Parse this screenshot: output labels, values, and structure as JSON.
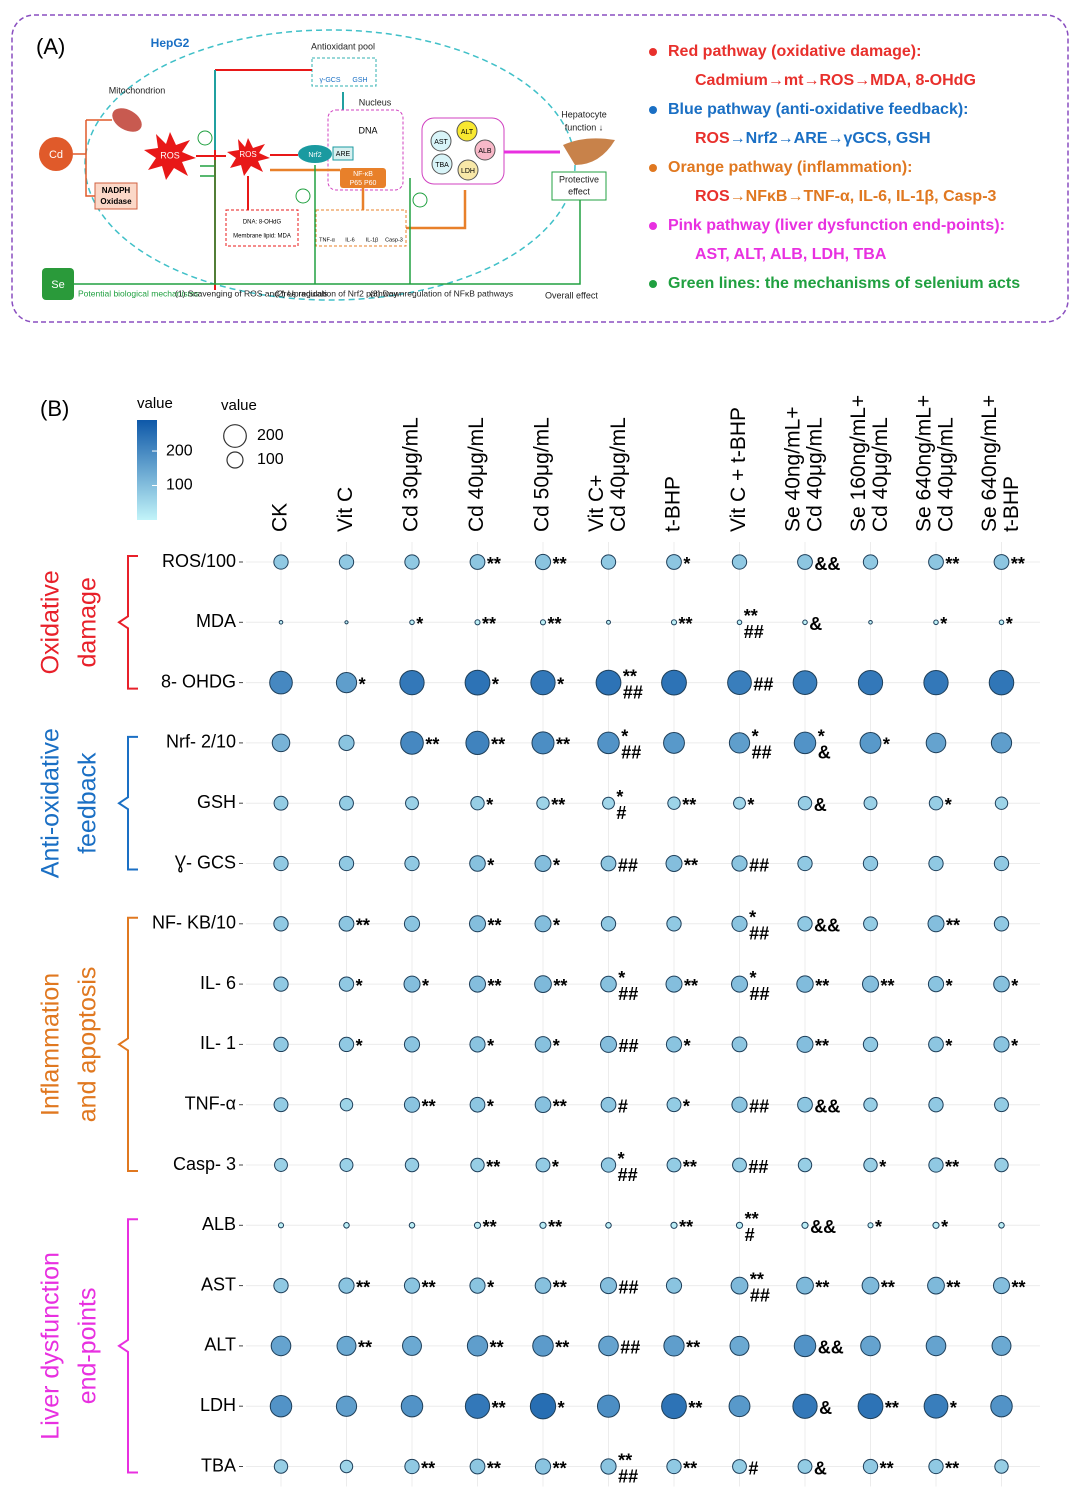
{
  "panel_a": {
    "label": "(A)",
    "cell": "HepG2",
    "antioxidant_pool": "Antioxidant pool",
    "pool_items": [
      "γ-GCS",
      "GSH"
    ],
    "mitochondrion": "Mitochondrion",
    "nucleus": "Nucleus",
    "dna": "DNA",
    "cd": "Cd",
    "nadph": [
      "NADPH",
      "Oxidase"
    ],
    "ros": "ROS",
    "nrf2": "Nrf2",
    "are": "ARE",
    "nfkb": [
      "NF-κB",
      "P65 P60"
    ],
    "enzymes": [
      "AST",
      "ALT",
      "ALB",
      "TBA",
      "LDH"
    ],
    "hepatocyte": [
      "Hepatocyte",
      "function ↓"
    ],
    "protective": [
      "Protective",
      "effect"
    ],
    "damage_targets": [
      "DNA: 8-OHdG",
      "Membrane lipid: MDA"
    ],
    "cytokines": [
      "TNF-α",
      "IL-6",
      "IL-1β",
      "Casp-3"
    ],
    "se": "Se",
    "mechanisms": [
      "Potential biological mechanisms:",
      "(1) Scavenging of ROS and free radicals",
      "(2) Upregulation of Nrf2 pathway",
      "(3) Downregulation of NFκB pathways",
      "Overall effect"
    ],
    "legend": [
      {
        "color": "#e8302c",
        "title": "Red pathway (oxidative damage):",
        "detail": [
          {
            "text": "Cadmium→mt→ROS→MDA, 8-OHdG",
            "color": "#e8302c"
          }
        ]
      },
      {
        "color": "#1a6fc4",
        "title": "Blue pathway (anti-oxidative feedback):",
        "detail": [
          {
            "text": "ROS",
            "color": "#e8302c"
          },
          {
            "text": "→Nrf2→ARE→γGCS, GSH",
            "color": "#1a6fc4"
          }
        ]
      },
      {
        "color": "#e07820",
        "title": "Orange pathway (inflammation):",
        "detail": [
          {
            "text": "ROS",
            "color": "#e8302c"
          },
          {
            "text": "→NFκB→TNF-α, IL-6, IL-1β, Casp-3",
            "color": "#e07820"
          }
        ]
      },
      {
        "color": "#e830e0",
        "title": "Pink pathway (liver dysfunction end-points):",
        "detail": [
          {
            "text": "AST, ALT, ALB, LDH, TBA",
            "color": "#e830e0"
          }
        ]
      },
      {
        "color": "#20a040",
        "title": "Green lines: the mechanisms of selenium acts"
      }
    ]
  },
  "chart_data": {
    "type": "bubble",
    "label": "(B)",
    "color_legend_label": "value",
    "size_legend_label": "value",
    "color_lim": [
      0,
      290
    ],
    "color_ticks": [
      200,
      100
    ],
    "colors": [
      "#c2f4f9",
      "#0e58a8"
    ],
    "size_ticks": [
      200,
      100
    ],
    "categories": [
      [
        "CK"
      ],
      [
        "Vit C"
      ],
      [
        "Cd 30μg/mL"
      ],
      [
        "Cd 40μg/mL"
      ],
      [
        "Cd 50μg/mL"
      ],
      [
        "Vit C+",
        "Cd 40μg/mL"
      ],
      [
        "t-BHP"
      ],
      [
        "Vit C + t-BHP"
      ],
      [
        "Se 40ng/mL+",
        "Cd 40μg/mL"
      ],
      [
        "Se 160ng/mL+",
        "Cd 40μg/mL"
      ],
      [
        "Se 640ng/mL+",
        "Cd 40μg/mL"
      ],
      [
        "Se 640ng/mL+",
        "t-BHP"
      ]
    ],
    "groups": [
      {
        "label": [
          "Oxidative",
          "damage"
        ],
        "color": "#e8202a",
        "rows": [
          {
            "label": "ROS/100",
            "values": [
              80,
              80,
              80,
              85,
              90,
              80,
              85,
              80,
              85,
              80,
              85,
              85
            ],
            "annotations": [
              null,
              null,
              null,
              "**",
              "**",
              null,
              "*",
              null,
              "&&",
              null,
              "**",
              "**"
            ]
          },
          {
            "label": "MDA",
            "values": [
              5,
              4,
              8,
              10,
              10,
              6,
              10,
              8,
              8,
              5,
              8,
              8
            ],
            "annotations": [
              null,
              null,
              "*",
              "**",
              "**",
              null,
              "**",
              [
                "**",
                "##"
              ],
              "&",
              null,
              "*",
              "*"
            ]
          },
          {
            "label": "8- OHDG",
            "values": [
              200,
              160,
              230,
              240,
              230,
              240,
              240,
              220,
              220,
              230,
              230,
              235
            ],
            "annotations": [
              null,
              "*",
              null,
              "*",
              "*",
              [
                "**",
                "##"
              ],
              null,
              "##",
              null,
              null,
              null,
              null
            ]
          }
        ]
      },
      {
        "label": [
          "Anti-oxidative",
          "feedback"
        ],
        "color": "#1a6fc4",
        "rows": [
          {
            "label": "Nrf- 2/10",
            "values": [
              120,
              90,
              200,
              210,
              190,
              180,
              170,
              160,
              180,
              170,
              150,
              160
            ],
            "annotations": [
              null,
              null,
              "**",
              "**",
              "**",
              [
                "*",
                "##"
              ],
              null,
              [
                "*",
                "##"
              ],
              [
                "*",
                "&"
              ],
              "*",
              null,
              null
            ]
          },
          {
            "label": "GSH",
            "values": [
              75,
              75,
              65,
              70,
              60,
              55,
              60,
              55,
              70,
              65,
              70,
              60
            ],
            "annotations": [
              null,
              null,
              null,
              "*",
              "**",
              [
                "*",
                "#"
              ],
              "**",
              "*",
              "&",
              null,
              "*",
              null
            ]
          },
          {
            "label": "Ɣ- GCS",
            "values": [
              80,
              80,
              80,
              95,
              100,
              85,
              100,
              90,
              80,
              80,
              80,
              80
            ],
            "annotations": [
              null,
              null,
              null,
              "*",
              "*",
              "##",
              "**",
              "##",
              null,
              null,
              null,
              null
            ]
          }
        ]
      },
      {
        "label": [
          "Inflammation",
          "and apoptosis"
        ],
        "color": "#e07820",
        "rows": [
          {
            "label": "NF- KB/10",
            "values": [
              80,
              85,
              90,
              100,
              100,
              80,
              80,
              90,
              80,
              75,
              100,
              80
            ],
            "annotations": [
              null,
              "**",
              null,
              "**",
              "*",
              null,
              null,
              [
                "*",
                "##"
              ],
              "&&",
              null,
              "**",
              null
            ]
          },
          {
            "label": "IL- 6",
            "values": [
              80,
              80,
              100,
              100,
              110,
              95,
              100,
              100,
              105,
              100,
              90,
              95
            ],
            "annotations": [
              null,
              "*",
              "*",
              "**",
              "**",
              [
                "*",
                "##"
              ],
              "**",
              [
                "*",
                "##"
              ],
              "**",
              "**",
              "*",
              "*"
            ]
          },
          {
            "label": "IL- 1",
            "values": [
              80,
              80,
              90,
              90,
              95,
              100,
              90,
              85,
              100,
              80,
              85,
              90
            ],
            "annotations": [
              null,
              "*",
              null,
              "*",
              "*",
              "##",
              "*",
              null,
              "**",
              null,
              "*",
              "*"
            ]
          },
          {
            "label": "TNF-α",
            "values": [
              75,
              60,
              90,
              85,
              95,
              85,
              75,
              90,
              85,
              70,
              80,
              75
            ],
            "annotations": [
              null,
              null,
              "**",
              "*",
              "**",
              "#",
              "*",
              "##",
              "&&",
              null,
              null,
              null
            ]
          },
          {
            "label": "Casp- 3",
            "values": [
              65,
              65,
              70,
              70,
              75,
              80,
              75,
              75,
              70,
              70,
              80,
              70
            ],
            "annotations": [
              null,
              null,
              null,
              "**",
              "*",
              [
                "*",
                "##"
              ],
              "**",
              "##",
              null,
              "*",
              "**",
              null
            ]
          }
        ]
      },
      {
        "label": [
          "Liver dysfunction",
          "end-points"
        ],
        "color": "#e830e0",
        "rows": [
          {
            "label": "ALB",
            "values": [
              10,
              12,
              12,
              15,
              15,
              12,
              15,
              15,
              15,
              10,
              15,
              12
            ],
            "annotations": [
              null,
              null,
              null,
              "**",
              "**",
              null,
              "**",
              [
                "**",
                "#"
              ],
              "&&",
              "*",
              "*",
              null
            ]
          },
          {
            "label": "AST",
            "values": [
              80,
              90,
              90,
              90,
              95,
              100,
              90,
              110,
              110,
              110,
              110,
              100
            ],
            "annotations": [
              null,
              "**",
              "**",
              "*",
              "**",
              "##",
              null,
              [
                "**",
                "##"
              ],
              "**",
              "**",
              "**",
              "**"
            ]
          },
          {
            "label": "ALT",
            "values": [
              150,
              140,
              140,
              160,
              165,
              150,
              160,
              140,
              180,
              150,
              150,
              140
            ],
            "annotations": [
              null,
              "**",
              null,
              "**",
              "**",
              "##",
              "**",
              null,
              "&&",
              null,
              null,
              null
            ]
          },
          {
            "label": "LDH",
            "values": [
              180,
              160,
              180,
              230,
              250,
              190,
              240,
              170,
              230,
              240,
              220,
              180
            ],
            "annotations": [
              null,
              null,
              null,
              "**",
              "*",
              null,
              "**",
              null,
              "&",
              "**",
              "*",
              null
            ]
          },
          {
            "label": "TBA",
            "values": [
              70,
              60,
              80,
              85,
              90,
              90,
              80,
              75,
              75,
              80,
              80,
              70
            ],
            "annotations": [
              null,
              null,
              "**",
              "**",
              "**",
              [
                "**",
                "##"
              ],
              "**",
              "#",
              "&",
              "**",
              "**",
              null
            ]
          }
        ]
      }
    ]
  }
}
